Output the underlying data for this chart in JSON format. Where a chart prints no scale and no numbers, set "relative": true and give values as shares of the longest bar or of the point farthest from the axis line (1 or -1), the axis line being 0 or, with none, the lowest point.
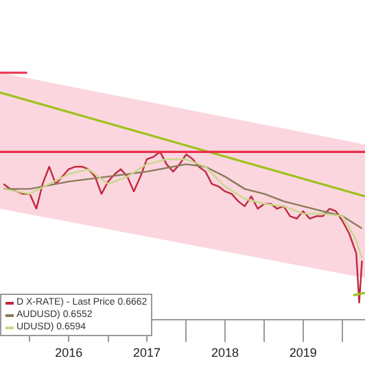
{
  "chart_data": {
    "type": "line",
    "relative": true,
    "legend": "bottom left",
    "marker": "none",
    "line_style": "solid",
    "grid": false,
    "xlim": [
      "2015-08-15",
      "2020-04-15"
    ],
    "xticks": [
      {
        "value": "2016-01-01",
        "label": null
      },
      {
        "value": "2016-07-01",
        "label": "2016"
      },
      {
        "value": "2017-01-01",
        "label": null
      },
      {
        "value": "2017-07-01",
        "label": "2017"
      },
      {
        "value": "2018-01-01",
        "label": null
      },
      {
        "value": "2018-07-01",
        "label": "2018"
      },
      {
        "value": "2019-01-01",
        "label": null
      },
      {
        "value": "2019-07-01",
        "label": "2019"
      },
      {
        "value": "2020-01-01",
        "label": null
      }
    ],
    "ref_lines": [
      {
        "axis": "y",
        "value": 0.68,
        "color": "#e8304a"
      }
    ],
    "series": [
      {
        "color": "#9cc21a",
        "x": [
          "2015-08-15",
          "2020-04-15"
        ],
        "values": [
          0.92,
          0.5
        ],
        "lower": [
          0.45,
          0.17
        ],
        "upper": [
          1.0,
          0.71
        ]
      },
      {
        "color": "#e8304a",
        "x": [
          "2015-08-15",
          "2015-12-20"
        ],
        "values": [
          1.0,
          1.0
        ]
      },
      {
        "color": "#9cc21a",
        "x": [
          "2020-02-20",
          "2020-04-15"
        ],
        "values": [
          0.1,
          0.11
        ]
      },
      {
        "name": "UDUSD) 0.6594",
        "color": "#c8d88a",
        "x": [
          "2015-09",
          "2016-01",
          "2016-04",
          "2016-07",
          "2016-10",
          "2017-01",
          "2017-04",
          "2017-07",
          "2017-10",
          "2018-01",
          "2018-04",
          "2018-07",
          "2018-10",
          "2019-01",
          "2019-04",
          "2019-07",
          "2019-10",
          "2020-01",
          "2020-03",
          "2020-04"
        ],
        "values": [
          0.53,
          0.51,
          0.55,
          0.59,
          0.61,
          0.55,
          0.58,
          0.63,
          0.65,
          0.65,
          0.62,
          0.54,
          0.49,
          0.47,
          0.46,
          0.43,
          0.43,
          0.42,
          0.33,
          0.25
        ]
      },
      {
        "name": "AUDUSD) 0.6552",
        "color": "#8a7a5a",
        "x": [
          "2015-09",
          "2016-01",
          "2016-07",
          "2017-01",
          "2017-07",
          "2018-01",
          "2018-04",
          "2018-07",
          "2018-10",
          "2019-01",
          "2019-04",
          "2019-07",
          "2019-10",
          "2020-01",
          "2020-04"
        ],
        "values": [
          0.53,
          0.53,
          0.56,
          0.58,
          0.6,
          0.63,
          0.62,
          0.58,
          0.53,
          0.51,
          0.48,
          0.46,
          0.44,
          0.42,
          0.37
        ]
      },
      {
        "name": "D X-RATE) - Last Price 0.6662",
        "color": "#c0283c",
        "x": [
          "2015-09",
          "2015-10",
          "2015-11",
          "2015-12",
          "2016-01",
          "2016-02",
          "2016-03",
          "2016-04",
          "2016-05",
          "2016-06",
          "2016-07",
          "2016-08",
          "2016-09",
          "2016-10",
          "2016-11",
          "2016-12",
          "2017-01",
          "2017-02",
          "2017-03",
          "2017-04",
          "2017-05",
          "2017-06",
          "2017-07",
          "2017-08",
          "2017-09",
          "2017-10",
          "2017-11",
          "2017-12",
          "2018-01",
          "2018-02",
          "2018-03",
          "2018-04",
          "2018-05",
          "2018-06",
          "2018-07",
          "2018-08",
          "2018-09",
          "2018-10",
          "2018-11",
          "2018-12",
          "2019-01",
          "2019-02",
          "2019-03",
          "2019-04",
          "2019-05",
          "2019-06",
          "2019-07",
          "2019-08",
          "2019-09",
          "2019-10",
          "2019-11",
          "2019-12",
          "2020-01",
          "2020-02",
          "2020-03-05",
          "2020-03-19",
          "2020-04"
        ],
        "values": [
          0.55,
          0.53,
          0.52,
          0.51,
          0.51,
          0.45,
          0.55,
          0.62,
          0.55,
          0.58,
          0.61,
          0.62,
          0.62,
          0.61,
          0.58,
          0.51,
          0.56,
          0.59,
          0.61,
          0.58,
          0.52,
          0.58,
          0.65,
          0.66,
          0.68,
          0.63,
          0.6,
          0.63,
          0.67,
          0.65,
          0.62,
          0.6,
          0.55,
          0.54,
          0.52,
          0.51,
          0.48,
          0.46,
          0.5,
          0.45,
          0.47,
          0.47,
          0.45,
          0.46,
          0.42,
          0.41,
          0.44,
          0.41,
          0.42,
          0.42,
          0.45,
          0.44,
          0.4,
          0.35,
          0.27,
          0.07,
          0.24
        ]
      }
    ]
  }
}
